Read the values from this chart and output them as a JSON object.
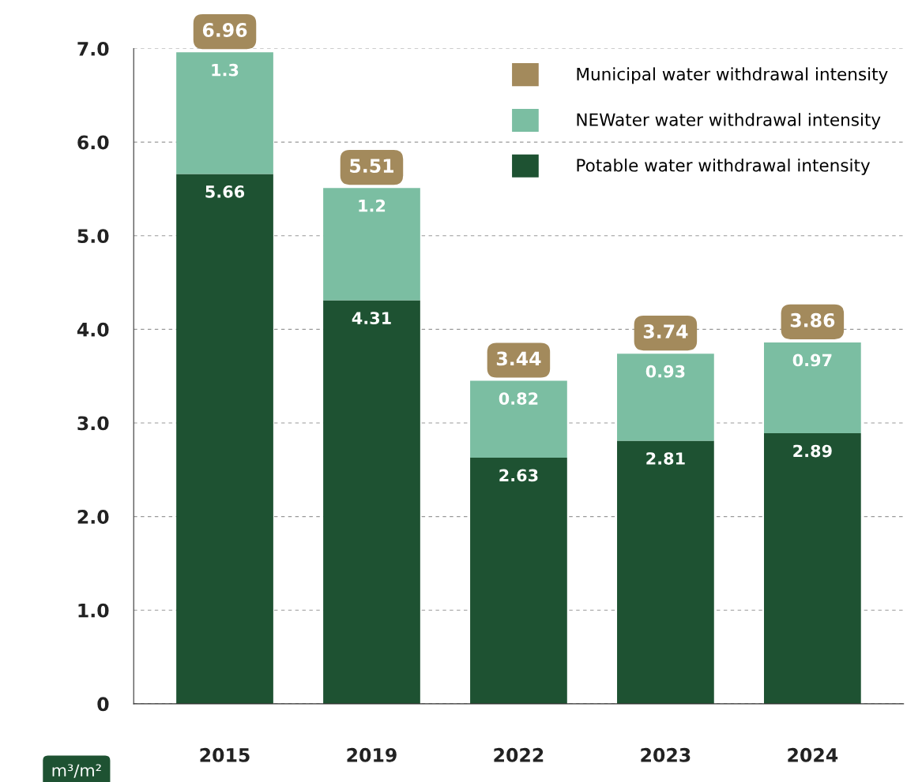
{
  "chart_data": {
    "type": "bar",
    "stacked": true,
    "categories": [
      "2015",
      "2019",
      "2022",
      "2023",
      "2024"
    ],
    "series": [
      {
        "name": "Potable water withdrawal intensity",
        "color": "#1e5232",
        "values": [
          5.66,
          4.31,
          2.63,
          2.81,
          2.89
        ],
        "value_labels": [
          "5.66",
          "4.31",
          "2.63",
          "2.81",
          "2.89"
        ]
      },
      {
        "name": "NEWater water withdrawal intensity",
        "color": "#7bbea2",
        "values": [
          1.3,
          1.2,
          0.82,
          0.93,
          0.97
        ],
        "value_labels": [
          "1.3",
          "1.2",
          "0.82",
          "0.93",
          "0.97"
        ]
      },
      {
        "name": "Municipal water withdrawal intensity",
        "color": "#a38a5c",
        "values": [
          0,
          0,
          0,
          0,
          0
        ],
        "value_labels": [
          null,
          null,
          null,
          null,
          null
        ]
      }
    ],
    "totals": [
      "6.96",
      "5.51",
      "3.44",
      "3.74",
      "3.86"
    ],
    "ylim": [
      0,
      7
    ],
    "yticks": [
      0,
      {
        "value": 1,
        "label": "1.0"
      },
      {
        "value": 2,
        "label": "2.0"
      },
      {
        "value": 3,
        "label": "3.0"
      },
      {
        "value": 4,
        "label": "4.0"
      },
      {
        "value": 5,
        "label": "5.0"
      },
      {
        "value": 6,
        "label": "6.0"
      },
      {
        "value": 7,
        "label": "7.0"
      }
    ],
    "grid": "y",
    "legend": "top right",
    "annotations": [
      "m³/m²"
    ]
  }
}
